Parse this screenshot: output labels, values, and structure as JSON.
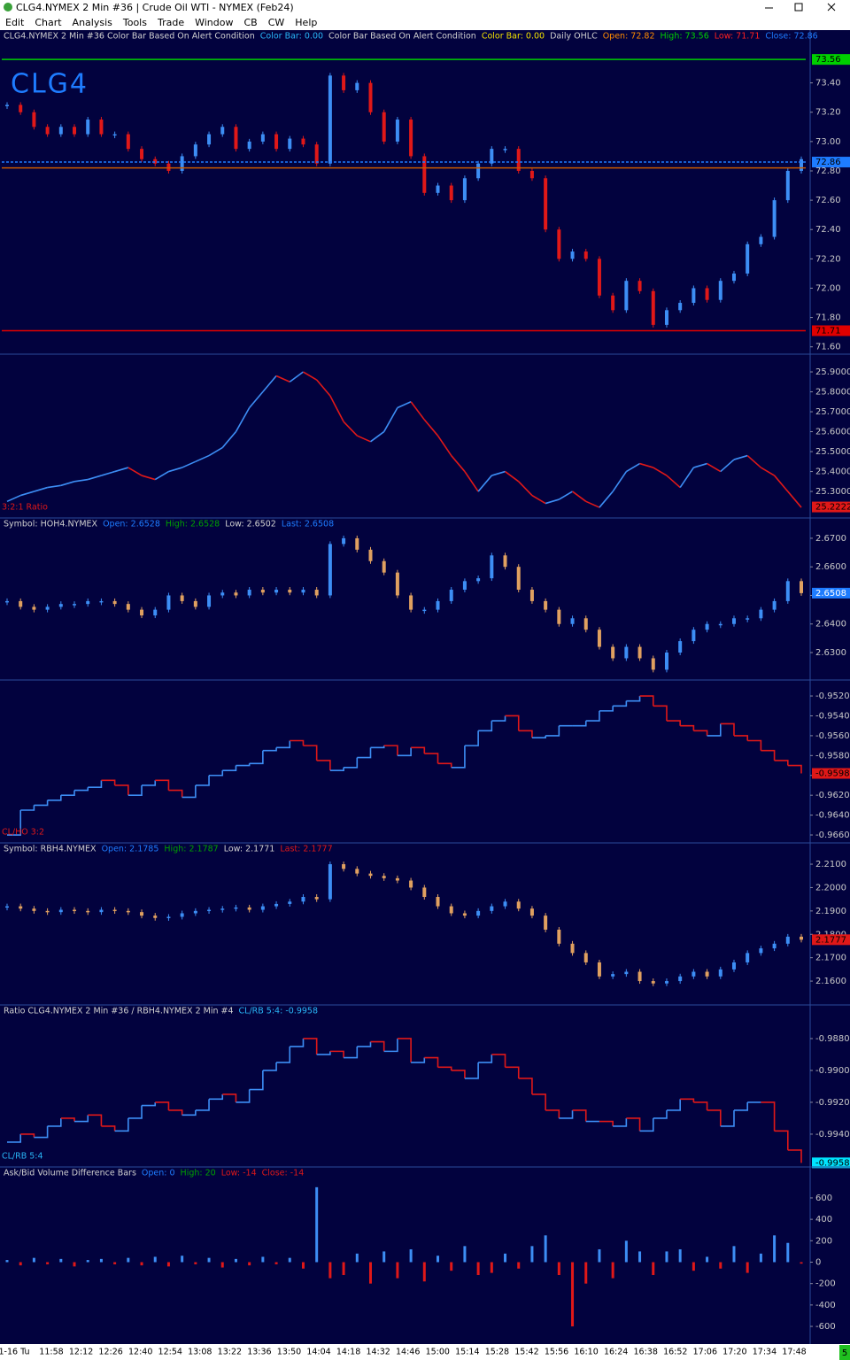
{
  "window": {
    "title": "CLG4.NYMEX  2 Min  #36 | Crude Oil WTI - NYMEX (Feb24)",
    "menu": [
      "Edit",
      "Chart",
      "Analysis",
      "Tools",
      "Trade",
      "Window",
      "CB",
      "CW",
      "Help"
    ]
  },
  "panels": [
    {
      "type": "candle",
      "symbol_label": "CLG4",
      "up_color": "#3d8ef5",
      "down_color": "#e01818",
      "legend": [
        {
          "text": "CLG4.NYMEX 2 Min #36 Color Bar Based On Alert Condition",
          "color": "#d0d0d0"
        },
        {
          "text": "Color Bar: 0.00",
          "color": "#29b6f6"
        },
        {
          "text": "Color Bar Based On Alert Condition",
          "color": "#d0d0d0"
        },
        {
          "text": "Color Bar: 0.00",
          "color": "#f0e000"
        },
        {
          "text": "Daily OHLC",
          "color": "#d0d0d0"
        },
        {
          "text": "Open: 72.82",
          "color": "#ff8c00"
        },
        {
          "text": "High: 73.56",
          "color": "#00d000"
        },
        {
          "text": "Low: 71.71",
          "color": "#ff2020"
        },
        {
          "text": "Close: 72.86",
          "color": "#1e7cff"
        }
      ],
      "ylim": [
        71.55,
        73.76
      ],
      "yticks": [
        {
          "value": 71.6,
          "label": "71.60"
        },
        {
          "value": 71.8,
          "label": "71.80"
        },
        {
          "value": 72,
          "label": "72.00"
        },
        {
          "value": 72.2,
          "label": "72.20"
        },
        {
          "value": 72.4,
          "label": "72.40"
        },
        {
          "value": 72.6,
          "label": "72.60"
        },
        {
          "value": 72.8,
          "label": "72.80"
        },
        {
          "value": 73,
          "label": "73.00"
        },
        {
          "value": 73.2,
          "label": "73.20"
        },
        {
          "value": 73.4,
          "label": "73.40"
        }
      ],
      "levels": [
        {
          "value": 73.56,
          "label": "73.56",
          "color": "#00d000"
        },
        {
          "value": 72.86,
          "label": "72.86",
          "color": "#1e7cff",
          "dashed": true
        },
        {
          "value": 72.82,
          "color": "#c85a00"
        },
        {
          "value": 71.71,
          "label": "71.71",
          "color": "#e00000"
        }
      ],
      "values": [
        73.25,
        73.2,
        73.1,
        73.05,
        73.1,
        73.05,
        73.15,
        73.05,
        73.05,
        72.95,
        72.88,
        72.85,
        72.8,
        72.9,
        72.98,
        73.05,
        73.1,
        72.95,
        73,
        73.05,
        72.95,
        73.02,
        72.98,
        72.85,
        73.45,
        73.35,
        73.4,
        73.2,
        73,
        73.15,
        72.9,
        72.65,
        72.7,
        72.6,
        72.75,
        72.85,
        72.95,
        72.95,
        72.8,
        72.75,
        72.4,
        72.2,
        72.25,
        72.2,
        71.95,
        71.85,
        72.05,
        71.98,
        71.75,
        71.85,
        71.9,
        72,
        71.92,
        72.05,
        72.1,
        72.3,
        72.35,
        72.6,
        72.8,
        72.88
      ]
    },
    {
      "type": "line",
      "label": "3:2:1 Ratio",
      "label_color": "#e01818",
      "up_color": "#3d8ef5",
      "down_color": "#e01818",
      "ylim": [
        25.167,
        25.989
      ],
      "yticks": [
        {
          "value": 25.3,
          "label": "25.3000"
        },
        {
          "value": 25.4,
          "label": "25.4000"
        },
        {
          "value": 25.5,
          "label": "25.5000"
        },
        {
          "value": 25.6,
          "label": "25.6000"
        },
        {
          "value": 25.7,
          "label": "25.7000"
        },
        {
          "value": 25.8,
          "label": "25.8000"
        },
        {
          "value": 25.9,
          "label": "25.9000"
        }
      ],
      "current": {
        "value": 25.2222,
        "label": "25.2222",
        "color": "#e01818"
      },
      "values": [
        25.25,
        25.28,
        25.3,
        25.32,
        25.33,
        25.35,
        25.36,
        25.38,
        25.4,
        25.42,
        25.38,
        25.36,
        25.4,
        25.42,
        25.45,
        25.48,
        25.52,
        25.6,
        25.72,
        25.8,
        25.88,
        25.85,
        25.9,
        25.86,
        25.78,
        25.65,
        25.58,
        25.55,
        25.6,
        25.72,
        25.75,
        25.66,
        25.58,
        25.48,
        25.4,
        25.3,
        25.38,
        25.4,
        25.35,
        25.28,
        25.24,
        25.26,
        25.3,
        25.25,
        25.22,
        25.3,
        25.4,
        25.44,
        25.42,
        25.38,
        25.32,
        25.42,
        25.44,
        25.4,
        25.46,
        25.48,
        25.42,
        25.38,
        25.3,
        25.22
      ]
    },
    {
      "type": "candle",
      "up_color": "#3d8ef5",
      "down_color": "#e0a060",
      "legend": [
        {
          "text": "Symbol: HOH4.NYMEX",
          "color": "#d0d0d0"
        },
        {
          "text": "Open: 2.6528",
          "color": "#1e7cff"
        },
        {
          "text": "High: 2.6528",
          "color": "#00a000"
        },
        {
          "text": "Low: 2.6502",
          "color": "#d0d0d0"
        },
        {
          "text": "Last: 2.6508",
          "color": "#1e7cff"
        }
      ],
      "ylim": [
        2.6204,
        2.6771
      ],
      "yticks": [
        {
          "value": 2.63,
          "label": "2.6300"
        },
        {
          "value": 2.64,
          "label": "2.6400"
        },
        {
          "value": 2.65,
          "label": "2.6500"
        },
        {
          "value": 2.66,
          "label": "2.6600"
        },
        {
          "value": 2.67,
          "label": "2.6700"
        }
      ],
      "current": {
        "value": 2.6508,
        "label": "2.6508",
        "color": "#1e7cff"
      },
      "values": [
        2.648,
        2.646,
        2.645,
        2.646,
        2.647,
        2.647,
        2.648,
        2.648,
        2.647,
        2.645,
        2.643,
        2.645,
        2.65,
        2.648,
        2.646,
        2.65,
        2.651,
        2.65,
        2.652,
        2.651,
        2.652,
        2.651,
        2.652,
        2.65,
        2.668,
        2.67,
        2.666,
        2.662,
        2.658,
        2.65,
        2.645,
        2.645,
        2.648,
        2.652,
        2.655,
        2.656,
        2.664,
        2.66,
        2.652,
        2.648,
        2.645,
        2.64,
        2.642,
        2.638,
        2.632,
        2.628,
        2.632,
        2.628,
        2.624,
        2.63,
        2.634,
        2.638,
        2.64,
        2.64,
        2.642,
        2.642,
        2.645,
        2.648,
        2.655,
        2.6508
      ]
    },
    {
      "type": "step",
      "label": "CL/HO 3:2",
      "label_color": "#e01818",
      "up_color": "#3d8ef5",
      "down_color": "#e01818",
      "ylim": [
        -0.9668,
        -0.95039
      ],
      "yticks": [
        {
          "value": -0.952,
          "label": "-0.9520"
        },
        {
          "value": -0.954,
          "label": "-0.9540"
        },
        {
          "value": -0.956,
          "label": "-0.9560"
        },
        {
          "value": -0.958,
          "label": "-0.9580"
        },
        {
          "value": -0.96,
          "label": "-0.9600"
        },
        {
          "value": -0.962,
          "label": "-0.9620"
        },
        {
          "value": -0.964,
          "label": "-0.9640"
        },
        {
          "value": -0.966,
          "label": "-0.9660"
        }
      ],
      "current": {
        "value": -0.9598,
        "label": "-0.9598",
        "color": "#e01818"
      },
      "values": [
        -0.966,
        -0.9635,
        -0.963,
        -0.9625,
        -0.962,
        -0.9615,
        -0.9612,
        -0.9605,
        -0.961,
        -0.962,
        -0.961,
        -0.9605,
        -0.9615,
        -0.9622,
        -0.961,
        -0.96,
        -0.9595,
        -0.959,
        -0.9588,
        -0.9575,
        -0.9572,
        -0.9565,
        -0.957,
        -0.9585,
        -0.9595,
        -0.9592,
        -0.9582,
        -0.9572,
        -0.957,
        -0.958,
        -0.9572,
        -0.9578,
        -0.9588,
        -0.9592,
        -0.957,
        -0.9555,
        -0.9545,
        -0.954,
        -0.9555,
        -0.9562,
        -0.956,
        -0.955,
        -0.955,
        -0.9545,
        -0.9535,
        -0.953,
        -0.9525,
        -0.952,
        -0.953,
        -0.9545,
        -0.955,
        -0.9555,
        -0.956,
        -0.9548,
        -0.956,
        -0.9565,
        -0.9575,
        -0.9585,
        -0.959,
        -0.9598
      ]
    },
    {
      "type": "candle",
      "up_color": "#3d8ef5",
      "down_color": "#e0a060",
      "legend": [
        {
          "text": "Symbol: RBH4.NYMEX",
          "color": "#d0d0d0"
        },
        {
          "text": "Open: 2.1785",
          "color": "#1e7cff"
        },
        {
          "text": "High: 2.1787",
          "color": "#00a000"
        },
        {
          "text": "Low: 2.1771",
          "color": "#d0d0d0"
        },
        {
          "text": "Last: 2.1777",
          "color": "#e01818"
        }
      ],
      "ylim": [
        2.1498,
        2.2191
      ],
      "yticks": [
        {
          "value": 2.16,
          "label": "2.1600"
        },
        {
          "value": 2.17,
          "label": "2.1700"
        },
        {
          "value": 2.18,
          "label": "2.1800"
        },
        {
          "value": 2.19,
          "label": "2.1900"
        },
        {
          "value": 2.2,
          "label": "2.2000"
        },
        {
          "value": 2.21,
          "label": "2.2100"
        }
      ],
      "current": {
        "value": 2.1777,
        "label": "2.1777",
        "color": "#e01818"
      },
      "values": [
        2.192,
        2.191,
        2.19,
        2.1895,
        2.1905,
        2.19,
        2.1895,
        2.1905,
        2.19,
        2.1895,
        2.188,
        2.187,
        2.1875,
        2.189,
        2.19,
        2.1905,
        2.191,
        2.1915,
        2.1905,
        2.192,
        2.193,
        2.194,
        2.196,
        2.195,
        2.21,
        2.208,
        2.206,
        2.205,
        2.204,
        2.203,
        2.2,
        2.196,
        2.192,
        2.189,
        2.188,
        2.19,
        2.192,
        2.194,
        2.191,
        2.188,
        2.182,
        2.176,
        2.172,
        2.168,
        2.162,
        2.163,
        2.164,
        2.16,
        2.159,
        2.16,
        2.162,
        2.164,
        2.162,
        2.165,
        2.168,
        2.172,
        2.174,
        2.176,
        2.179,
        2.1777
      ]
    },
    {
      "type": "step",
      "label": "CL/RB 5:4",
      "label_color": "#29b6f6",
      "up_color": "#3d8ef5",
      "down_color": "#e01818",
      "legend": [
        {
          "text": "Ratio CLG4.NYMEX 2 Min #36 / RBH4.NYMEX 2 Min #4",
          "color": "#d0d0d0"
        },
        {
          "text": "CL/RB 5:4: -0.9958",
          "color": "#29b6f6"
        }
      ],
      "ylim": [
        -0.99606,
        -0.98589
      ],
      "yticks": [
        {
          "value": -0.988,
          "label": "-0.9880"
        },
        {
          "value": -0.99,
          "label": "-0.9900"
        },
        {
          "value": -0.992,
          "label": "-0.9920"
        },
        {
          "value": -0.994,
          "label": "-0.9940"
        }
      ],
      "current": {
        "value": -0.9958,
        "label": "-0.9958",
        "color": "#00e5ff"
      },
      "values": [
        -0.9945,
        -0.994,
        -0.9942,
        -0.9935,
        -0.993,
        -0.9932,
        -0.9928,
        -0.9935,
        -0.9938,
        -0.993,
        -0.9922,
        -0.992,
        -0.9925,
        -0.9928,
        -0.9925,
        -0.9918,
        -0.9915,
        -0.992,
        -0.9912,
        -0.99,
        -0.9895,
        -0.9885,
        -0.988,
        -0.989,
        -0.9888,
        -0.9892,
        -0.9885,
        -0.9882,
        -0.9888,
        -0.988,
        -0.9895,
        -0.9892,
        -0.9898,
        -0.99,
        -0.9905,
        -0.9895,
        -0.989,
        -0.9898,
        -0.9905,
        -0.9915,
        -0.9925,
        -0.993,
        -0.9925,
        -0.9932,
        -0.9932,
        -0.9935,
        -0.993,
        -0.9938,
        -0.993,
        -0.9925,
        -0.9918,
        -0.992,
        -0.9925,
        -0.9935,
        -0.9925,
        -0.992,
        -0.992,
        -0.9938,
        -0.995,
        -0.9958
      ]
    },
    {
      "type": "histogram",
      "up_color": "#3d8ef5",
      "down_color": "#e01818",
      "legend": [
        {
          "text": "Ask/Bid Volume Difference Bars",
          "color": "#d0d0d0"
        },
        {
          "text": "Open: 0",
          "color": "#1e7cff"
        },
        {
          "text": "High: 20",
          "color": "#00a000"
        },
        {
          "text": "Low: -14",
          "color": "#e01818"
        },
        {
          "text": "Close: -14",
          "color": "#e01818"
        }
      ],
      "ylim": [
        -765,
        889
      ],
      "yticks": [
        -600,
        -400,
        -200,
        0,
        200,
        400,
        600
      ],
      "values": [
        20,
        -30,
        40,
        -20,
        30,
        -40,
        20,
        30,
        -20,
        40,
        -30,
        50,
        -40,
        60,
        -20,
        40,
        -50,
        30,
        -30,
        50,
        -20,
        40,
        -60,
        700,
        -150,
        -120,
        80,
        -200,
        100,
        -150,
        120,
        -180,
        60,
        -80,
        150,
        -120,
        -100,
        80,
        -60,
        150,
        250,
        -120,
        -600,
        -200,
        120,
        -150,
        200,
        100,
        -120,
        100,
        120,
        -80,
        50,
        -60,
        150,
        -100,
        80,
        250,
        180,
        -14
      ]
    }
  ],
  "time_axis": {
    "labels": [
      "1-16 Tu",
      "11:58",
      "12:12",
      "12:26",
      "12:40",
      "12:54",
      "13:08",
      "13:22",
      "13:36",
      "13:50",
      "14:04",
      "14:18",
      "14:32",
      "14:46",
      "15:00",
      "15:14",
      "15:28",
      "15:42",
      "15:56",
      "16:10",
      "16:24",
      "16:38",
      "16:52",
      "17:06",
      "17:20",
      "17:34",
      "17:48"
    ]
  },
  "corner": "5"
}
